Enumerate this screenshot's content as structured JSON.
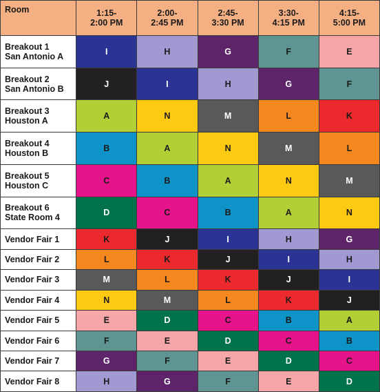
{
  "header": {
    "room": "Room",
    "slots": [
      "1:15-\n2:00 PM",
      "2:00-\n2:45 PM",
      "2:45-\n3:30 PM",
      "3:30-\n4:15 PM",
      "4:15-\n5:00 PM"
    ]
  },
  "colors": {
    "A": {
      "bg": "#b2cf36",
      "fg": "#1a1a1a"
    },
    "B": {
      "bg": "#0e93c9",
      "fg": "#1a1a1a"
    },
    "C": {
      "bg": "#e7138a",
      "fg": "#1a1a1a"
    },
    "D": {
      "bg": "#00734d",
      "fg": "#ffffff"
    },
    "E": {
      "bg": "#f4a6a8",
      "fg": "#1a1a1a"
    },
    "F": {
      "bg": "#5e9592",
      "fg": "#1a1a1a"
    },
    "G": {
      "bg": "#5e2469",
      "fg": "#ffffff"
    },
    "H": {
      "bg": "#a19ad2",
      "fg": "#1a1a1a"
    },
    "I": {
      "bg": "#2b3494",
      "fg": "#ffffff"
    },
    "J": {
      "bg": "#232021",
      "fg": "#ffffff"
    },
    "K": {
      "bg": "#ec2a2d",
      "fg": "#1a1a1a"
    },
    "L": {
      "bg": "#f5871f",
      "fg": "#1a1a1a"
    },
    "M": {
      "bg": "#58595b",
      "fg": "#ffffff"
    },
    "N": {
      "bg": "#fec912",
      "fg": "#1a1a1a"
    }
  },
  "rows": [
    {
      "room": "Breakout 1\nSan Antonio A",
      "cells": [
        "I",
        "H",
        "G",
        "F",
        "E"
      ]
    },
    {
      "room": "Breakout 2\nSan Antonio B",
      "cells": [
        "J",
        "I",
        "H",
        "G",
        "F"
      ]
    },
    {
      "room": "Breakout 3\nHouston A",
      "cells": [
        "A",
        "N",
        "M",
        "L",
        "K"
      ]
    },
    {
      "room": "Breakout 4\nHouston B",
      "cells": [
        "B",
        "A",
        "N",
        "M",
        "L"
      ]
    },
    {
      "room": "Breakout 5\nHouston C",
      "cells": [
        "C",
        "B",
        "A",
        "N",
        "M"
      ]
    },
    {
      "room": "Breakout 6\nState Room 4",
      "cells": [
        "D",
        "C",
        "B",
        "A",
        "N"
      ]
    },
    {
      "room": "Vendor Fair 1",
      "cells": [
        "K",
        "J",
        "I",
        "H",
        "G"
      ]
    },
    {
      "room": "Vendor Fair 2",
      "cells": [
        "L",
        "K",
        "J",
        "I",
        "H"
      ]
    },
    {
      "room": "Vendor Fair 3",
      "cells": [
        "M",
        "L",
        "K",
        "J",
        "I"
      ]
    },
    {
      "room": "Vendor Fair 4",
      "cells": [
        "N",
        "M",
        "L",
        "K",
        "J"
      ]
    },
    {
      "room": "Vendor Fair 5",
      "cells": [
        "E",
        "D",
        "C",
        "B",
        "A"
      ]
    },
    {
      "room": "Vendor Fair 6",
      "cells": [
        "F",
        "E",
        "D",
        "C",
        "B"
      ]
    },
    {
      "room": "Vendor Fair 7",
      "cells": [
        "G",
        "F",
        "E",
        "D",
        "C"
      ]
    },
    {
      "room": "Vendor Fair 8",
      "cells": [
        "H",
        "G",
        "F",
        "E",
        "D"
      ]
    }
  ]
}
